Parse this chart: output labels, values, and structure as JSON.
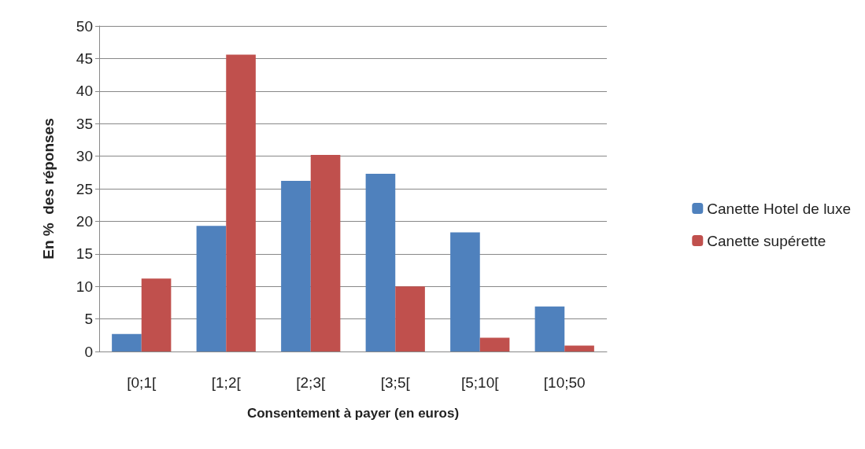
{
  "chart_data": {
    "type": "bar",
    "xlabel": "Consentement à payer (en euros)",
    "ylabel": "En %  des réponses",
    "categories": [
      "[0;1[",
      "[1;2[",
      "[2;3[",
      "[3;5[",
      "[5;10[",
      "[10;50"
    ],
    "series": [
      {
        "name": "Canette Hotel de luxe",
        "color": "#4f81bd",
        "values": [
          2.7,
          19.3,
          26.2,
          27.3,
          18.3,
          6.9
        ]
      },
      {
        "name": "Canette supérette",
        "color": "#c0504d",
        "values": [
          11.2,
          45.6,
          30.2,
          10.0,
          2.1,
          0.9
        ]
      }
    ],
    "ylim": [
      0,
      50
    ],
    "yticks": [
      0,
      5,
      10,
      15,
      20,
      25,
      30,
      35,
      40,
      45,
      50
    ],
    "grid": "y",
    "legend": "right"
  }
}
